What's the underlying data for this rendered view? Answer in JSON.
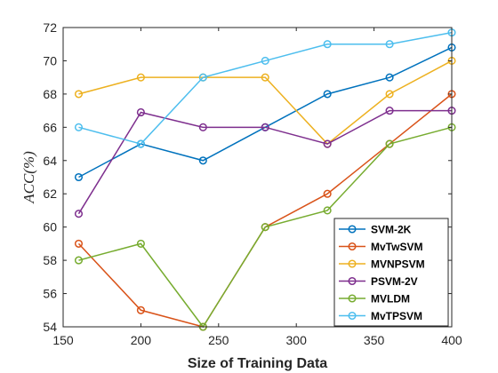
{
  "chart_data": {
    "type": "line",
    "title": "",
    "xlabel": "Size of Training Data",
    "ylabel": "ACC(%)",
    "xlim": [
      150,
      400
    ],
    "ylim": [
      54,
      72
    ],
    "xticks": [
      150,
      200,
      250,
      300,
      350,
      400
    ],
    "yticks": [
      54,
      56,
      58,
      60,
      62,
      64,
      66,
      68,
      70,
      72
    ],
    "grid": false,
    "legend_position": "bottom-right",
    "x": [
      160,
      200,
      240,
      280,
      320,
      360,
      400
    ],
    "series": [
      {
        "name": "SVM-2K",
        "color": "#0072BD",
        "values": [
          63,
          65,
          64,
          66,
          68,
          69,
          70.8
        ]
      },
      {
        "name": "MvTwSVM",
        "color": "#D95319",
        "values": [
          59,
          55,
          54,
          60,
          62,
          65,
          68
        ]
      },
      {
        "name": "MVNPSVM",
        "color": "#EDB120",
        "values": [
          68,
          69,
          69,
          69,
          65,
          68,
          70
        ]
      },
      {
        "name": "PSVM-2V",
        "color": "#7E2F8E",
        "values": [
          60.8,
          66.9,
          66,
          66,
          65,
          67,
          67
        ]
      },
      {
        "name": "MVLDM",
        "color": "#77AC30",
        "values": [
          58,
          59,
          54,
          60,
          61,
          65,
          66
        ]
      },
      {
        "name": "MvTPSVM",
        "color": "#4DBEEE",
        "values": [
          66,
          65,
          69,
          70,
          71,
          71,
          71.7
        ]
      }
    ]
  }
}
